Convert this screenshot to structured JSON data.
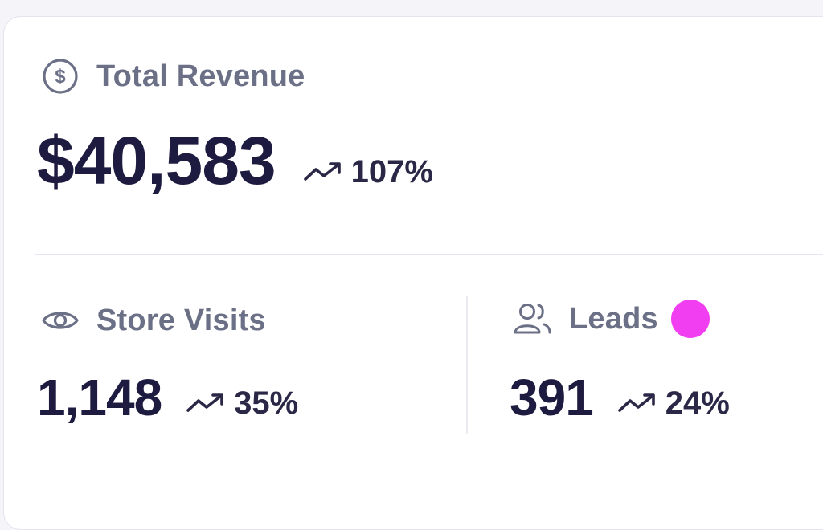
{
  "revenue": {
    "label": "Total Revenue",
    "value": "$40,583",
    "change": "107%",
    "icon": "dollar-circle-icon"
  },
  "visits": {
    "label": "Store Visits",
    "value": "1,148",
    "change": "35%",
    "icon": "eye-icon"
  },
  "leads": {
    "label": "Leads",
    "value": "391",
    "change": "24%",
    "icon": "users-icon",
    "dot_color": "#f03ef0"
  },
  "colors": {
    "text_primary": "#1d1b3f",
    "text_muted": "#6b7086",
    "divider": "#e6e5f0"
  }
}
